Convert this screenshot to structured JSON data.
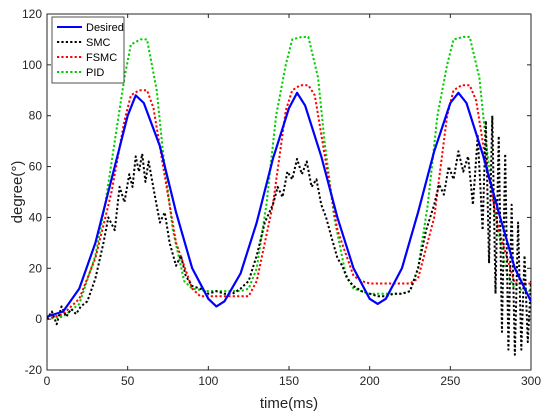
{
  "chart_data": {
    "type": "line",
    "title": "",
    "xlabel": "time(ms)",
    "ylabel": "degree(°)",
    "xlim": [
      0,
      300
    ],
    "ylim": [
      -20,
      120
    ],
    "xticks": [
      0,
      50,
      100,
      150,
      200,
      250,
      300
    ],
    "yticks": [
      -20,
      0,
      20,
      40,
      60,
      80,
      100,
      120
    ],
    "grid": false,
    "legend_position": "top-left",
    "series": [
      {
        "name": "Desired",
        "color": "#0000ff",
        "style": "solid",
        "x": [
          0,
          10,
          20,
          30,
          40,
          50,
          55,
          60,
          70,
          80,
          90,
          100,
          105,
          110,
          120,
          130,
          140,
          150,
          155,
          160,
          170,
          180,
          190,
          200,
          205,
          210,
          220,
          230,
          240,
          250,
          255,
          260,
          270,
          280,
          290,
          300
        ],
        "y": [
          1,
          3,
          12,
          30,
          55,
          80,
          88,
          85,
          68,
          42,
          20,
          8,
          5,
          7,
          18,
          38,
          63,
          83,
          89,
          84,
          64,
          40,
          20,
          8,
          6,
          8,
          20,
          42,
          66,
          85,
          89,
          85,
          65,
          42,
          20,
          7
        ]
      },
      {
        "name": "SMC",
        "color": "#000000",
        "style": "dotted",
        "x": [
          0,
          3,
          6,
          9,
          12,
          15,
          18,
          21,
          25,
          30,
          35,
          38,
          42,
          45,
          48,
          51,
          53,
          55,
          57,
          59,
          61,
          63,
          65,
          67,
          70,
          73,
          76,
          80,
          83,
          86,
          90,
          95,
          100,
          105,
          110,
          115,
          120,
          125,
          130,
          135,
          140,
          143,
          146,
          149,
          152,
          155,
          158,
          161,
          164,
          167,
          170,
          173,
          176,
          180,
          183,
          186,
          190,
          195,
          200,
          205,
          210,
          215,
          220,
          225,
          230,
          235,
          240,
          243,
          246,
          249,
          252,
          255,
          258,
          261,
          264,
          267,
          270,
          272,
          274,
          276,
          278,
          280,
          282,
          284,
          286,
          288,
          290,
          292,
          294,
          296,
          298,
          300
        ],
        "y": [
          0,
          3,
          -2,
          5,
          1,
          4,
          2,
          5,
          7,
          16,
          30,
          40,
          35,
          52,
          46,
          57,
          52,
          64,
          58,
          65,
          54,
          62,
          55,
          48,
          38,
          42,
          30,
          21,
          25,
          17,
          13,
          12,
          10,
          11,
          10,
          10,
          12,
          15,
          25,
          38,
          45,
          52,
          48,
          58,
          55,
          63,
          57,
          62,
          52,
          55,
          45,
          40,
          33,
          24,
          21,
          16,
          13,
          11,
          10,
          9,
          9,
          10,
          10,
          11,
          20,
          35,
          45,
          53,
          49,
          60,
          55,
          66,
          58,
          64,
          45,
          72,
          35,
          78,
          22,
          80,
          10,
          72,
          -5,
          65,
          -12,
          45,
          -14,
          38,
          -12,
          25,
          -9,
          15
        ]
      },
      {
        "name": "FSMC",
        "color": "#ff0000",
        "style": "dotted",
        "x": [
          0,
          10,
          20,
          30,
          40,
          48,
          52,
          57,
          62,
          66,
          72,
          80,
          90,
          95,
          100,
          110,
          120,
          125,
          130,
          140,
          148,
          152,
          157,
          162,
          166,
          172,
          180,
          190,
          195,
          200,
          210,
          220,
          225,
          230,
          240,
          248,
          252,
          257,
          262,
          266,
          272,
          280,
          290,
          300
        ],
        "y": [
          0,
          2,
          8,
          24,
          50,
          78,
          88,
          90,
          90,
          83,
          60,
          30,
          12,
          9,
          9,
          9,
          9,
          9,
          15,
          45,
          82,
          90,
          92,
          92,
          88,
          65,
          35,
          17,
          15,
          14,
          14,
          14,
          14,
          16,
          40,
          80,
          90,
          92,
          92,
          86,
          62,
          35,
          14,
          14
        ]
      },
      {
        "name": "PID",
        "color": "#00cc00",
        "style": "dotted",
        "x": [
          0,
          10,
          20,
          30,
          36,
          42,
          48,
          52,
          58,
          62,
          68,
          72,
          78,
          85,
          90,
          100,
          110,
          120,
          125,
          130,
          136,
          142,
          148,
          152,
          158,
          162,
          168,
          172,
          178,
          185,
          190,
          200,
          210,
          220,
          225,
          230,
          236,
          242,
          248,
          252,
          258,
          262,
          268,
          272,
          278,
          285,
          290,
          300
        ],
        "y": [
          0,
          1,
          6,
          25,
          45,
          70,
          95,
          108,
          110,
          110,
          90,
          65,
          35,
          15,
          12,
          11,
          11,
          11,
          12,
          20,
          45,
          80,
          100,
          110,
          111,
          111,
          95,
          70,
          40,
          18,
          12,
          10,
          10,
          10,
          11,
          20,
          45,
          80,
          100,
          110,
          111,
          111,
          95,
          70,
          40,
          18,
          12,
          11
        ]
      }
    ]
  }
}
